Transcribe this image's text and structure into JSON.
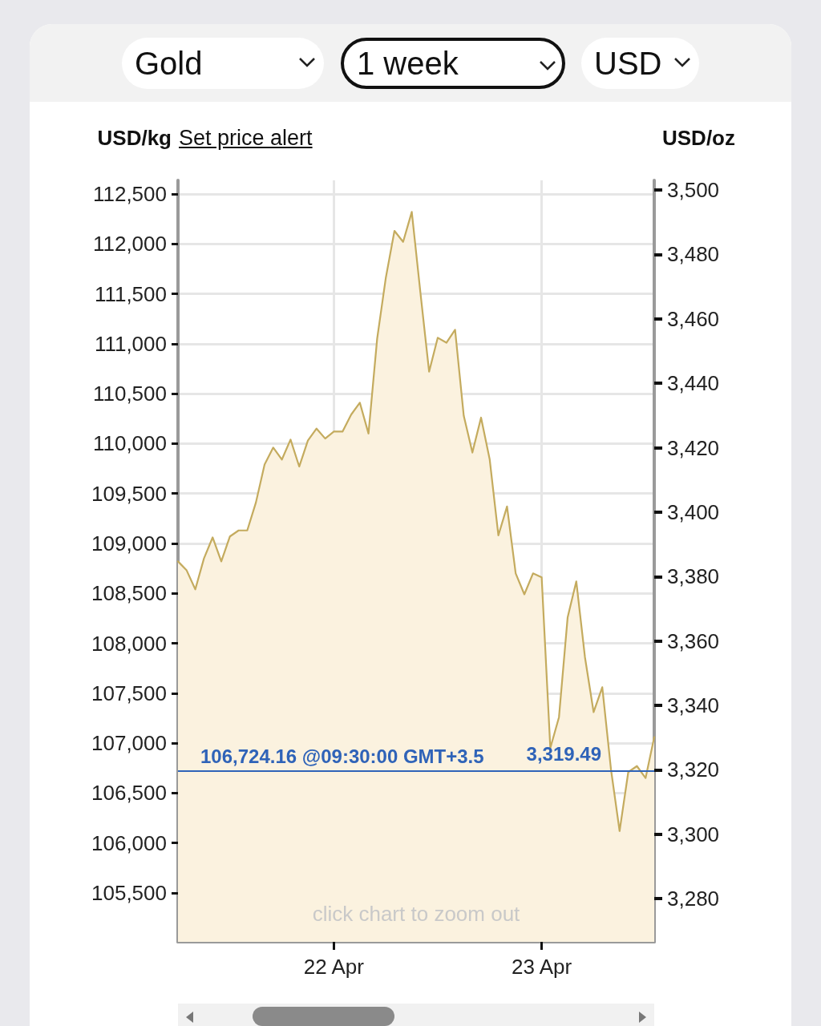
{
  "chart_data": {
    "type": "area",
    "ylabel": "USD/kg",
    "y2label": "USD/oz",
    "annotations": [
      "Gold",
      "1 week",
      "USD",
      "Set price alert",
      "click chart to zoom out",
      "3,319.49"
    ],
    "x": [
      "--04-21T06:00",
      "--04-21T07:00",
      "--04-21T08:00",
      "--04-21T09:00",
      "--04-21T10:00",
      "--04-21T11:00",
      "--04-21T12:00",
      "--04-21T13:00",
      "--04-21T14:00",
      "--04-21T15:00",
      "--04-21T16:00",
      "--04-21T17:00",
      "--04-21T18:00",
      "--04-21T19:00",
      "--04-21T20:00",
      "--04-21T21:00",
      "--04-21T22:00",
      "--04-21T23:00",
      "--04-22T00:00",
      "--04-22T01:00",
      "--04-22T02:00",
      "--04-22T03:00",
      "--04-22T04:00",
      "--04-22T05:00",
      "--04-22T06:00",
      "--04-22T07:00",
      "--04-22T08:00",
      "--04-22T09:00",
      "--04-22T10:00",
      "--04-22T11:00",
      "--04-22T12:00",
      "--04-22T13:00",
      "--04-22T14:00",
      "--04-22T15:00",
      "--04-22T16:00",
      "--04-22T17:00",
      "--04-22T18:00",
      "--04-22T19:00",
      "--04-22T20:00",
      "--04-22T21:00",
      "--04-22T22:00",
      "--04-22T23:00",
      "--04-23T00:00",
      "--04-23T01:00",
      "--04-23T02:00",
      "--04-23T03:00",
      "--04-23T04:00",
      "--04-23T05:00",
      "--04-23T06:00",
      "--04-23T07:00",
      "--04-23T08:00",
      "--04-23T09:00",
      "--04-23T10:00",
      "--04-23T11:00",
      "--04-23T12:00",
      "--04-23T13:00"
    ],
    "series": [
      {
        "color": "#c4ab5e",
        "values": [
          108820,
          108730,
          108540,
          108850,
          109060,
          108820,
          109070,
          109130,
          109130,
          109410,
          109790,
          109960,
          109840,
          110040,
          109770,
          110030,
          110150,
          110050,
          110120,
          110120,
          110290,
          110410,
          110100,
          111050,
          111660,
          112130,
          112020,
          112320,
          111510,
          110720,
          111060,
          111010,
          111140,
          110280,
          109910,
          110260,
          109840,
          109080,
          109370,
          108700,
          108490,
          108700,
          108660,
          106950,
          107260,
          108260,
          108620,
          107860,
          107310,
          107560,
          106740,
          106120,
          106710,
          106770,
          106650,
          107060
        ]
      }
    ],
    "xlim": [
      "--04-21T06:00",
      "--04-23T13:00"
    ],
    "xticks": [
      {
        "value": "--04-22",
        "label": "22 Apr"
      },
      {
        "value": "--04-23",
        "label": "23 Apr"
      }
    ],
    "ylim": [
      105010,
      112636
    ],
    "yticks": [
      {
        "value": 105500,
        "label": "105,500"
      },
      {
        "value": 106000,
        "label": "106,000"
      },
      {
        "value": 106500,
        "label": "106,500"
      },
      {
        "value": 107000,
        "label": "107,000"
      },
      {
        "value": 107500,
        "label": "107,500"
      },
      {
        "value": 108000,
        "label": "108,000"
      },
      {
        "value": 108500,
        "label": "108,500"
      },
      {
        "value": 109000,
        "label": "109,000"
      },
      {
        "value": 109500,
        "label": "109,500"
      },
      {
        "value": 110000,
        "label": "110,000"
      },
      {
        "value": 110500,
        "label": "110,500"
      },
      {
        "value": 111000,
        "label": "111,000"
      },
      {
        "value": 111500,
        "label": "111,500"
      },
      {
        "value": 112000,
        "label": "112,000"
      },
      {
        "value": 112500,
        "label": "112,500"
      }
    ],
    "y2lim": [
      3266.6,
      3503
    ],
    "y2ticks": [
      {
        "value": 3280,
        "label": "3,280"
      },
      {
        "value": 3300,
        "label": "3,300"
      },
      {
        "value": 3320,
        "label": "3,320"
      },
      {
        "value": 3340,
        "label": "3,340"
      },
      {
        "value": 3360,
        "label": "3,360"
      },
      {
        "value": 3380,
        "label": "3,380"
      },
      {
        "value": 3400,
        "label": "3,400"
      },
      {
        "value": 3420,
        "label": "3,420"
      },
      {
        "value": 3440,
        "label": "3,440"
      },
      {
        "value": 3460,
        "label": "3,460"
      },
      {
        "value": 3480,
        "label": "3,480"
      },
      {
        "value": 3500,
        "label": "3,500"
      }
    ],
    "ref_lines": [
      {
        "axis": "y",
        "value": 106724.16,
        "label": "106,724.16 @09:30:00 GMT+3.5",
        "color": "#2f63b8"
      }
    ],
    "grid": true,
    "marker": "none",
    "line_style": "solid"
  }
}
